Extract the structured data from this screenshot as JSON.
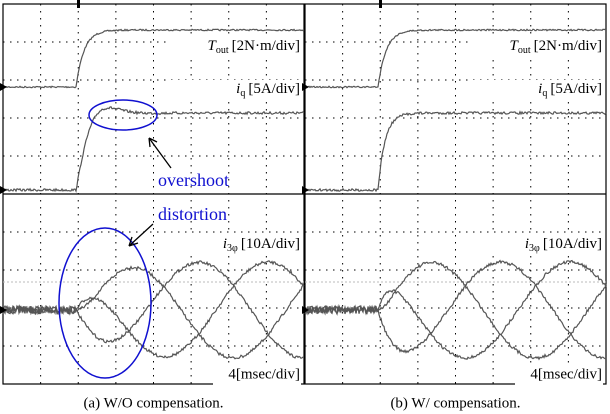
{
  "panels": [
    {
      "torque_symbol": "T",
      "torque_sub": "out",
      "torque_scale": "[2N·m/div]",
      "iq_symbol": "i",
      "iq_sub": "q",
      "iq_scale": "[5A/div]",
      "i3_symbol": "i",
      "i3_sub": "3φ",
      "i3_scale": "[10A/div]",
      "time_scale": "4[msec/div]",
      "overshoot": "overshoot",
      "distortion": "distortion",
      "caption": "(a) W/O compensation."
    },
    {
      "torque_symbol": "T",
      "torque_sub": "out",
      "torque_scale": "[2N·m/div]",
      "iq_symbol": "i",
      "iq_sub": "q",
      "iq_scale": "[5A/div]",
      "i3_symbol": "i",
      "i3_sub": "3φ",
      "i3_scale": "[10A/div]",
      "time_scale": "4[msec/div]",
      "caption": "(b) W/ compensation."
    }
  ]
}
